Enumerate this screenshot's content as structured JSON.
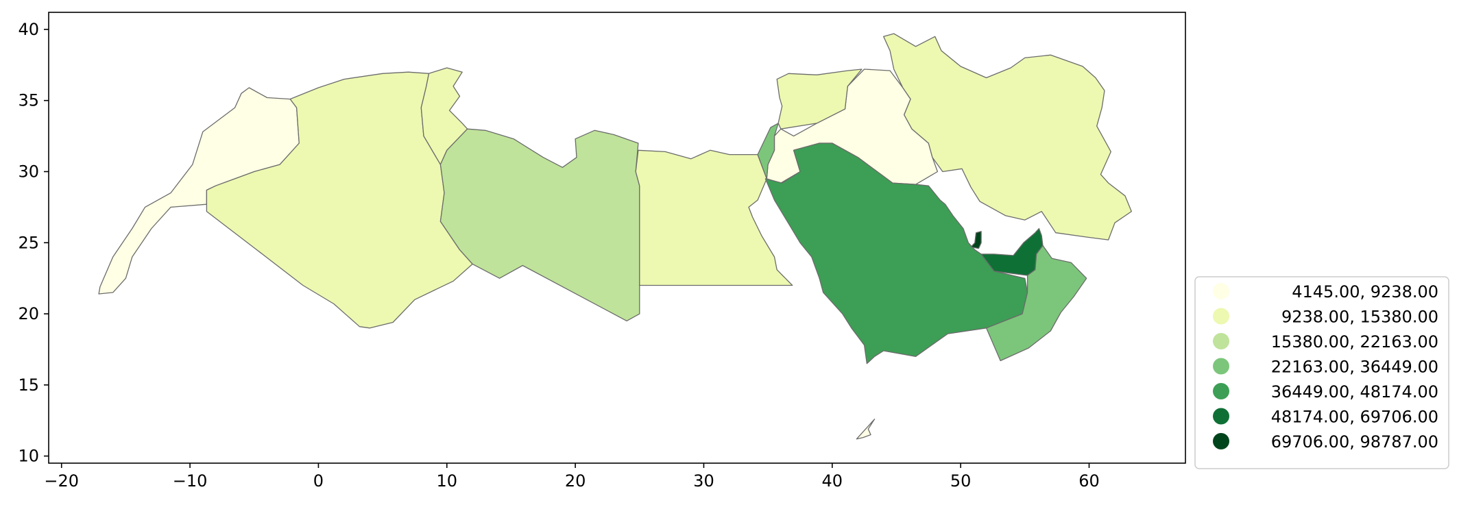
{
  "chart_data": {
    "type": "choropleth",
    "title": "",
    "xlabel": "",
    "ylabel": "",
    "xlim": [
      -21,
      67.5
    ],
    "ylim": [
      9.5,
      41.2
    ],
    "x_ticks": [
      "−20",
      "−10",
      "0",
      "10",
      "20",
      "30",
      "40",
      "50",
      "60"
    ],
    "y_ticks": [
      "10",
      "15",
      "20",
      "25",
      "30",
      "35",
      "40"
    ],
    "legend": {
      "placement": "lower-right-outside",
      "entries": [
        {
          "label": "  4145.00,  9238.00",
          "color": "#ffffe5"
        },
        {
          "label": "  9238.00, 15380.00",
          "color": "#edf8b1"
        },
        {
          "label": "15380.00, 22163.00",
          "color": "#bfe39a"
        },
        {
          "label": "22163.00, 36449.00",
          "color": "#7cc67b"
        },
        {
          "label": "36449.00, 48174.00",
          "color": "#3c9f55"
        },
        {
          "label": "48174.00, 69706.00",
          "color": "#0f7036"
        },
        {
          "label": "69706.00, 98787.00",
          "color": "#00441b"
        }
      ]
    },
    "regions": [
      {
        "class": 0,
        "polygon": [
          [
            -17.1,
            21.4
          ],
          [
            -16.0,
            21.5
          ],
          [
            -15.0,
            22.5
          ],
          [
            -14.5,
            24.0
          ],
          [
            -13.0,
            26.0
          ],
          [
            -11.5,
            27.5
          ],
          [
            -8.7,
            27.7
          ],
          [
            -8.7,
            28.7
          ],
          [
            -8.0,
            29.0
          ],
          [
            -6.5,
            29.5
          ],
          [
            -5.0,
            30.0
          ],
          [
            -3.0,
            30.5
          ],
          [
            -1.5,
            32.0
          ],
          [
            -1.7,
            34.5
          ],
          [
            -2.2,
            35.1
          ],
          [
            -4.0,
            35.2
          ],
          [
            -5.4,
            35.9
          ],
          [
            -6.0,
            35.5
          ],
          [
            -6.5,
            34.5
          ],
          [
            -9.0,
            32.8
          ],
          [
            -9.8,
            30.5
          ],
          [
            -11.5,
            28.5
          ],
          [
            -13.5,
            27.5
          ],
          [
            -14.5,
            26.0
          ],
          [
            -16.0,
            24.0
          ],
          [
            -17.0,
            21.9
          ]
        ]
      },
      {
        "class": 1,
        "polygon": [
          [
            -8.7,
            27.7
          ],
          [
            -8.7,
            28.7
          ],
          [
            -8.0,
            29.0
          ],
          [
            -6.5,
            29.5
          ],
          [
            -5.0,
            30.0
          ],
          [
            -3.0,
            30.5
          ],
          [
            -1.5,
            32.0
          ],
          [
            -1.7,
            34.5
          ],
          [
            -2.2,
            35.1
          ],
          [
            0.0,
            35.9
          ],
          [
            2.0,
            36.5
          ],
          [
            5.0,
            36.9
          ],
          [
            7.0,
            37.0
          ],
          [
            8.6,
            36.9
          ],
          [
            8.4,
            36.0
          ],
          [
            8.0,
            34.5
          ],
          [
            8.2,
            32.5
          ],
          [
            9.5,
            30.5
          ],
          [
            9.8,
            28.5
          ],
          [
            9.5,
            26.5
          ],
          [
            11.0,
            24.5
          ],
          [
            12.0,
            23.5
          ],
          [
            10.5,
            22.3
          ],
          [
            7.5,
            21.0
          ],
          [
            5.8,
            19.4
          ],
          [
            4.0,
            19.0
          ],
          [
            3.2,
            19.1
          ],
          [
            1.2,
            20.7
          ],
          [
            -1.2,
            22.0
          ],
          [
            -4.8,
            24.5
          ],
          [
            -8.7,
            27.2
          ]
        ]
      },
      {
        "class": 1,
        "polygon": [
          [
            8.6,
            36.9
          ],
          [
            10.0,
            37.3
          ],
          [
            11.2,
            37.0
          ],
          [
            10.5,
            36.0
          ],
          [
            11.0,
            35.3
          ],
          [
            10.2,
            34.3
          ],
          [
            11.2,
            33.4
          ],
          [
            11.6,
            33.0
          ],
          [
            10.0,
            31.5
          ],
          [
            9.5,
            30.5
          ],
          [
            8.2,
            32.5
          ],
          [
            8.0,
            34.5
          ],
          [
            8.4,
            36.0
          ]
        ]
      },
      {
        "class": 2,
        "polygon": [
          [
            9.5,
            30.5
          ],
          [
            10.0,
            31.5
          ],
          [
            11.6,
            33.0
          ],
          [
            13.0,
            32.9
          ],
          [
            15.2,
            32.3
          ],
          [
            17.5,
            31.0
          ],
          [
            19.0,
            30.3
          ],
          [
            20.1,
            31.0
          ],
          [
            20.0,
            32.3
          ],
          [
            21.5,
            32.9
          ],
          [
            23.0,
            32.6
          ],
          [
            24.9,
            32.0
          ],
          [
            24.7,
            30.0
          ],
          [
            25.0,
            29.0
          ],
          [
            25.0,
            22.0
          ],
          [
            25.0,
            20.0
          ],
          [
            24.0,
            19.5
          ],
          [
            15.9,
            23.4
          ],
          [
            14.1,
            22.5
          ],
          [
            12.0,
            23.5
          ],
          [
            11.0,
            24.5
          ],
          [
            9.5,
            26.5
          ],
          [
            9.8,
            28.5
          ]
        ]
      },
      {
        "class": 1,
        "polygon": [
          [
            25.0,
            22.0
          ],
          [
            25.0,
            29.0
          ],
          [
            24.7,
            30.0
          ],
          [
            24.9,
            31.5
          ],
          [
            27.0,
            31.4
          ],
          [
            29.0,
            30.9
          ],
          [
            30.5,
            31.5
          ],
          [
            32.0,
            31.2
          ],
          [
            34.2,
            31.2
          ],
          [
            34.9,
            29.5
          ],
          [
            34.2,
            28.0
          ],
          [
            33.5,
            27.5
          ],
          [
            33.8,
            26.8
          ],
          [
            34.5,
            25.5
          ],
          [
            35.5,
            24.0
          ],
          [
            35.7,
            23.1
          ],
          [
            36.9,
            22.0
          ]
        ]
      },
      {
        "class": 0,
        "polygon": [
          [
            34.9,
            29.5
          ],
          [
            35.0,
            30.5
          ],
          [
            35.5,
            31.5
          ],
          [
            35.5,
            32.5
          ],
          [
            36.0,
            33.0
          ],
          [
            37.0,
            32.5
          ],
          [
            38.8,
            33.4
          ],
          [
            41.0,
            34.4
          ],
          [
            41.2,
            36.0
          ],
          [
            42.5,
            37.2
          ],
          [
            44.5,
            37.1
          ],
          [
            45.5,
            35.9
          ],
          [
            46.1,
            35.1
          ],
          [
            45.6,
            34.0
          ],
          [
            46.2,
            33.0
          ],
          [
            47.5,
            32.0
          ],
          [
            47.8,
            31.0
          ],
          [
            48.2,
            30.0
          ],
          [
            46.5,
            29.1
          ],
          [
            44.7,
            29.2
          ],
          [
            42.0,
            31.0
          ],
          [
            40.0,
            32.0
          ],
          [
            39.0,
            32.0
          ],
          [
            37.0,
            31.5
          ],
          [
            37.5,
            30.0
          ],
          [
            36.0,
            29.2
          ]
        ]
      },
      {
        "class": 3,
        "polygon": [
          [
            34.2,
            31.2
          ],
          [
            35.2,
            33.1
          ],
          [
            35.8,
            33.4
          ],
          [
            35.5,
            32.5
          ],
          [
            35.5,
            31.5
          ],
          [
            35.0,
            30.5
          ],
          [
            34.9,
            29.5
          ]
        ]
      },
      {
        "class": 1,
        "polygon": [
          [
            35.8,
            33.4
          ],
          [
            36.1,
            34.6
          ],
          [
            35.9,
            35.2
          ],
          [
            35.7,
            36.5
          ],
          [
            36.6,
            36.9
          ],
          [
            38.8,
            36.8
          ],
          [
            41.2,
            37.1
          ],
          [
            42.3,
            37.2
          ],
          [
            41.2,
            36.0
          ],
          [
            41.0,
            34.4
          ],
          [
            38.8,
            33.4
          ],
          [
            36.0,
            33.0
          ]
        ]
      },
      {
        "class": 1,
        "polygon": [
          [
            44.0,
            39.5
          ],
          [
            44.5,
            38.5
          ],
          [
            44.8,
            37.2
          ],
          [
            45.5,
            35.9
          ],
          [
            46.1,
            35.1
          ],
          [
            45.6,
            34.0
          ],
          [
            46.2,
            33.0
          ],
          [
            47.5,
            32.0
          ],
          [
            47.8,
            31.0
          ],
          [
            48.6,
            30.0
          ],
          [
            50.1,
            30.2
          ],
          [
            50.8,
            28.9
          ],
          [
            51.5,
            27.9
          ],
          [
            53.5,
            26.9
          ],
          [
            55.0,
            26.6
          ],
          [
            56.3,
            27.2
          ],
          [
            57.4,
            25.7
          ],
          [
            59.8,
            25.4
          ],
          [
            61.5,
            25.2
          ],
          [
            62.0,
            26.4
          ],
          [
            63.3,
            27.2
          ],
          [
            62.8,
            28.3
          ],
          [
            61.5,
            29.2
          ],
          [
            60.9,
            29.8
          ],
          [
            61.7,
            31.4
          ],
          [
            60.6,
            33.2
          ],
          [
            61.0,
            34.5
          ],
          [
            61.2,
            35.7
          ],
          [
            60.5,
            36.6
          ],
          [
            59.5,
            37.4
          ],
          [
            57.0,
            38.2
          ],
          [
            55.0,
            38.0
          ],
          [
            53.9,
            37.3
          ],
          [
            52.0,
            36.6
          ],
          [
            50.0,
            37.4
          ],
          [
            48.5,
            38.5
          ],
          [
            48.0,
            39.5
          ],
          [
            46.5,
            38.8
          ],
          [
            44.8,
            39.7
          ]
        ]
      },
      {
        "class": 4,
        "polygon": [
          [
            34.8,
            29.5
          ],
          [
            36.1,
            29.2
          ],
          [
            37.5,
            30.0
          ],
          [
            37.0,
            31.5
          ],
          [
            39.0,
            32.0
          ],
          [
            40.0,
            32.0
          ],
          [
            42.0,
            31.0
          ],
          [
            44.7,
            29.2
          ],
          [
            46.5,
            29.1
          ],
          [
            47.5,
            29.0
          ],
          [
            48.4,
            28.0
          ],
          [
            48.8,
            27.7
          ],
          [
            49.4,
            26.9
          ],
          [
            50.2,
            26.0
          ],
          [
            50.6,
            25.0
          ],
          [
            51.1,
            24.5
          ],
          [
            51.6,
            24.2
          ],
          [
            52.6,
            23.0
          ],
          [
            55.0,
            22.5
          ],
          [
            55.2,
            21.5
          ],
          [
            54.8,
            20.0
          ],
          [
            52.0,
            19.0
          ],
          [
            49.0,
            18.6
          ],
          [
            46.5,
            17.0
          ],
          [
            44.0,
            17.4
          ],
          [
            43.3,
            17.0
          ],
          [
            42.7,
            16.5
          ],
          [
            42.5,
            17.8
          ],
          [
            41.5,
            19.0
          ],
          [
            40.8,
            20.0
          ],
          [
            39.3,
            21.5
          ],
          [
            39.0,
            22.5
          ],
          [
            38.4,
            24.0
          ],
          [
            37.5,
            25.0
          ],
          [
            36.5,
            26.5
          ],
          [
            35.5,
            28.0
          ]
        ]
      },
      {
        "class": 6,
        "polygon": [
          [
            50.8,
            24.7
          ],
          [
            51.1,
            25.0
          ],
          [
            51.2,
            25.7
          ],
          [
            51.6,
            25.8
          ],
          [
            51.6,
            25.0
          ],
          [
            51.4,
            24.6
          ]
        ]
      },
      {
        "class": 5,
        "polygon": [
          [
            51.6,
            24.2
          ],
          [
            52.6,
            24.2
          ],
          [
            54.1,
            24.1
          ],
          [
            54.9,
            25.0
          ],
          [
            55.8,
            25.7
          ],
          [
            56.1,
            26.0
          ],
          [
            56.3,
            25.5
          ],
          [
            56.4,
            24.8
          ],
          [
            55.9,
            24.2
          ],
          [
            55.8,
            23.1
          ],
          [
            55.2,
            22.7
          ],
          [
            52.6,
            23.0
          ]
        ]
      },
      {
        "class": 3,
        "polygon": [
          [
            55.2,
            22.7
          ],
          [
            55.8,
            23.1
          ],
          [
            55.9,
            24.2
          ],
          [
            56.4,
            24.8
          ],
          [
            57.1,
            23.9
          ],
          [
            58.6,
            23.6
          ],
          [
            59.8,
            22.5
          ],
          [
            58.8,
            21.2
          ],
          [
            57.8,
            20.1
          ],
          [
            57.0,
            18.8
          ],
          [
            55.3,
            17.6
          ],
          [
            53.1,
            16.7
          ],
          [
            52.0,
            19.0
          ],
          [
            54.8,
            20.0
          ],
          [
            55.2,
            21.5
          ]
        ]
      },
      {
        "class": 0,
        "polygon": [
          [
            41.9,
            11.2
          ],
          [
            43.0,
            12.3
          ],
          [
            43.3,
            12.6
          ],
          [
            42.8,
            11.9
          ],
          [
            43.0,
            11.5
          ],
          [
            42.4,
            11.3
          ]
        ]
      }
    ]
  }
}
